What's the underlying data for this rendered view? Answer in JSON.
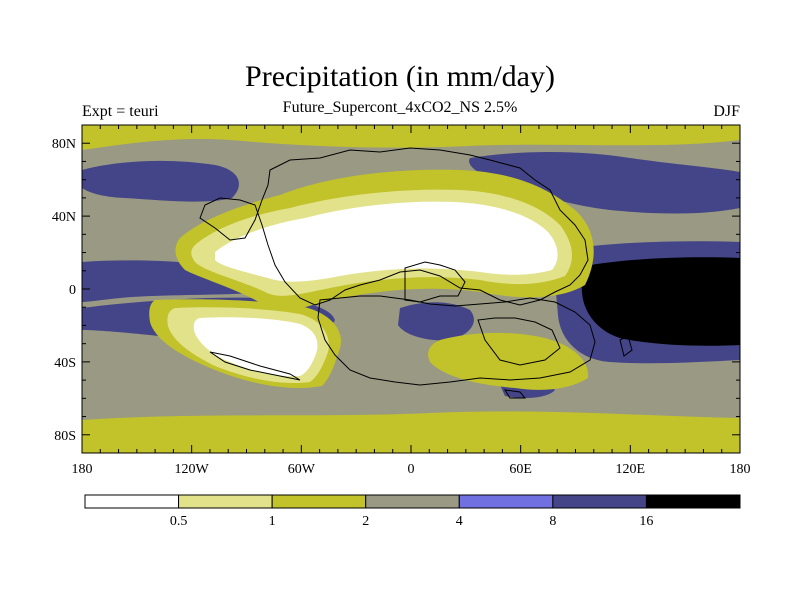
{
  "header": {
    "title": "Precipitation (in mm/day)",
    "subtitle": "Future_Supercont_4xCO2_NS 2.5%",
    "left_label": "Expt = teuri",
    "right_label": "DJF"
  },
  "axes": {
    "lat_ticks": [
      "80N",
      "40N",
      "0",
      "40S",
      "80S"
    ],
    "lat_values": [
      80,
      40,
      0,
      -40,
      -80
    ],
    "lon_ticks": [
      "180",
      "120W",
      "60W",
      "0",
      "60E",
      "120E",
      "180"
    ],
    "lon_values": [
      -180,
      -120,
      -60,
      0,
      60,
      120,
      180
    ],
    "lon_range": [
      -180,
      180
    ],
    "lat_range": [
      -90,
      90
    ]
  },
  "colorbar": {
    "labels": [
      "0.5",
      "1",
      "2",
      "4",
      "8",
      "16"
    ],
    "levels": [
      0.5,
      1,
      2,
      4,
      8,
      16
    ],
    "colors": [
      "#ffffff",
      "#e2e28a",
      "#c2c22a",
      "#999984",
      "#7070e0",
      "#444488",
      "#000000"
    ]
  }
}
